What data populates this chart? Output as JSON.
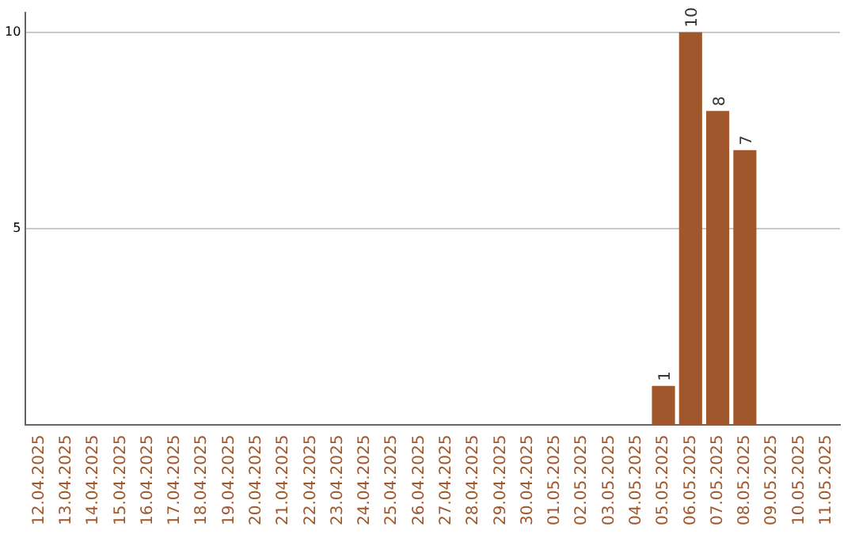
{
  "chart_data": {
    "type": "bar",
    "categories": [
      "12.04.2025",
      "13.04.2025",
      "14.04.2025",
      "15.04.2025",
      "16.04.2025",
      "17.04.2025",
      "18.04.2025",
      "19.04.2025",
      "20.04.2025",
      "21.04.2025",
      "22.04.2025",
      "23.04.2025",
      "24.04.2025",
      "25.04.2025",
      "26.04.2025",
      "27.04.2025",
      "28.04.2025",
      "29.04.2025",
      "30.04.2025",
      "01.05.2025",
      "02.05.2025",
      "03.05.2025",
      "04.05.2025",
      "05.05.2025",
      "06.05.2025",
      "07.05.2025",
      "08.05.2025",
      "09.05.2025",
      "10.05.2025",
      "11.05.2025"
    ],
    "values": [
      0,
      0,
      0,
      0,
      0,
      0,
      0,
      0,
      0,
      0,
      0,
      0,
      0,
      0,
      0,
      0,
      0,
      0,
      0,
      0,
      0,
      0,
      0,
      1,
      10,
      8,
      7,
      0,
      0,
      0
    ],
    "value_labels": [
      null,
      null,
      null,
      null,
      null,
      null,
      null,
      null,
      null,
      null,
      null,
      null,
      null,
      null,
      null,
      null,
      null,
      null,
      null,
      null,
      null,
      null,
      null,
      "1",
      "10",
      "8",
      "7",
      null,
      null,
      null
    ],
    "color": "#a0572b",
    "ylim": [
      0,
      10.5
    ],
    "yticks": [
      5,
      10
    ],
    "grid": "y",
    "legend": false
  }
}
